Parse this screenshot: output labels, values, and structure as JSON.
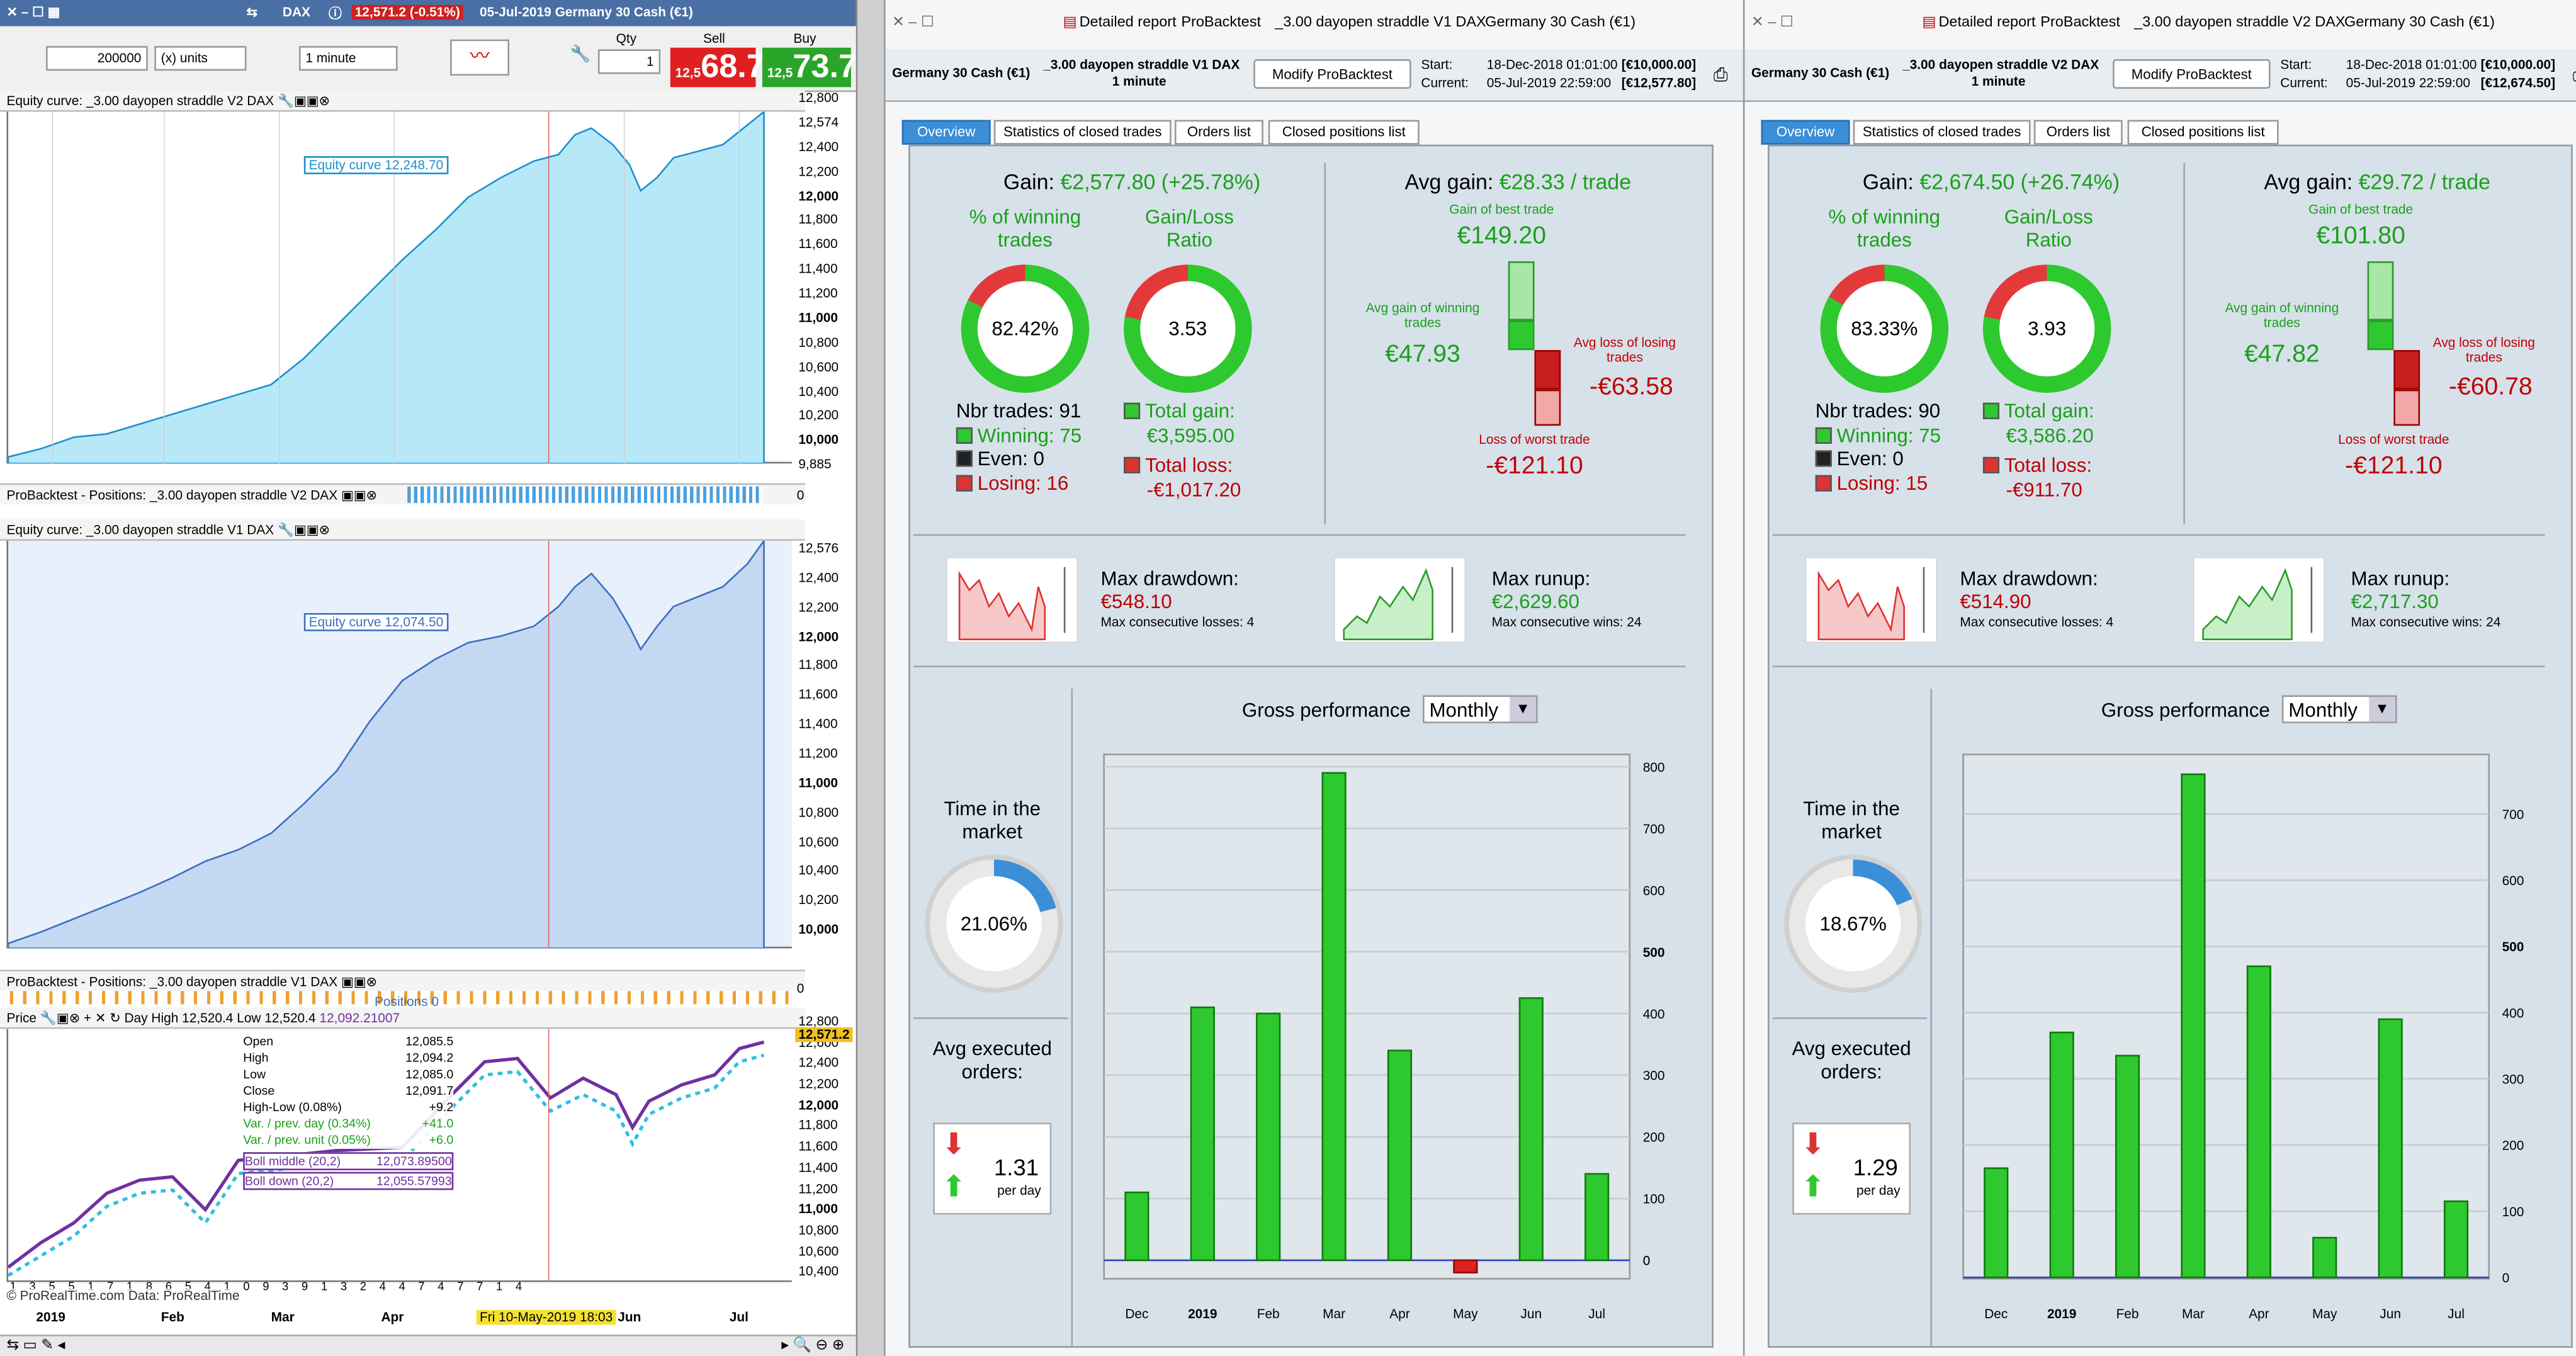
{
  "left": {
    "header": {
      "symbol": "DAX",
      "price": "12,571.2 (-0.51%)",
      "info": "05-Jul-2019 Germany 30 Cash (€1)"
    },
    "toolbar": {
      "units": "200000",
      "units_type": "(x) units",
      "timeframe": "1 minute",
      "qty_label": "Qty",
      "qty": "1",
      "sell_label": "Sell",
      "buy_label": "Buy",
      "sell_small": "12,5",
      "sell_big": "68.7",
      "buy_small": "12,5",
      "buy_big": "73.7"
    },
    "pane1": {
      "title": "Equity curve: _3.00 dayopen straddle V2 DAX",
      "label": "Equity curve  12,248.70",
      "axis": [
        "12,800",
        "12,574",
        "12,400",
        "12,200",
        "12,000",
        "11,800",
        "11,600",
        "11,400",
        "11,200",
        "11,000",
        "10,800",
        "10,600",
        "10,400",
        "10,200",
        "10,000",
        "9,885"
      ]
    },
    "pos1": {
      "title": "ProBacktest - Positions: _3.00 dayopen straddle V2 DAX",
      "axis": "0"
    },
    "pane2": {
      "title": "Equity curve: _3.00 dayopen straddle V1 DAX",
      "label": "Equity curve  12,074.50",
      "axis": [
        "12,576",
        "12,400",
        "12,200",
        "12,000",
        "11,800",
        "11,600",
        "11,400",
        "11,200",
        "11,000",
        "10,800",
        "10,600",
        "10,400",
        "10,200",
        "10,000"
      ]
    },
    "pos2": {
      "title": "ProBacktest - Positions: _3.00 dayopen straddle V1 DAX",
      "axis": "0",
      "label": "Positions  0"
    },
    "pane3": {
      "title": "Price",
      "dayhigh": "Day High 12,520.4 Low 12,520.4",
      "dayval": "12,092.21007",
      "tip": [
        [
          "Open",
          "12,085.5"
        ],
        [
          "High",
          "12,094.2"
        ],
        [
          "Low",
          "12,085.0"
        ],
        [
          "Close",
          "12,091.7"
        ],
        [
          "High-Low (0.08%)",
          "+9.2"
        ],
        [
          "Var. / prev. day (0.34%)",
          "+41.0"
        ],
        [
          "Var. / prev. unit (0.05%)",
          "+6.0"
        ]
      ],
      "boll_mid": "Boll middle (20,2)",
      "boll_mid_val": "12,073.89500",
      "boll_down": "Boll down (20,2)",
      "boll_down_val": "12,055.57993",
      "price": "12,571.2",
      "axis": [
        "12,800",
        "12,600",
        "12,400",
        "12,200",
        "12,000",
        "11,800",
        "11,600",
        "11,400",
        "11,200",
        "11,000",
        "10,800",
        "10,600",
        "10,400"
      ]
    },
    "xaxis": [
      "2019",
      "Feb",
      "Mar",
      "Apr",
      "May",
      "Jun",
      "Jul"
    ],
    "crosshair": "Fri 10-May-2019 18:03",
    "credit": "© ProRealTime.com Data: ProRealTime",
    "topnums1": "1 7 7 7 6 5 3 7 6 6 8 3 2 1 3 5 0 9 9 1 5 7",
    "botnums": "1 3 5 5 1 7 1 8 6 5 4 1 0 9 3 9 1 3 2 4 4 7 4 7 7 1 4"
  },
  "windows": [
    {
      "title_tabs": [
        "Detailed report",
        "ProBacktest",
        "_3.00 dayopen straddle V1 DAX",
        "Germany 30 Cash (€1)"
      ],
      "instrument": "Germany 30 Cash (€1)",
      "strategy": "_3.00 dayopen straddle V1 DAX",
      "tf": "1 minute",
      "modify": "Modify ProBacktest",
      "start_label": "Start:",
      "start": "18-Dec-2018 01:01:00",
      "start_val": "[€10,000.00]",
      "current_label": "Current:",
      "current": "05-Jul-2019 22:59:00",
      "current_val": "[€12,577.80]",
      "tabs": [
        "Overview",
        "Statistics of closed trades",
        "Orders list",
        "Closed positions list"
      ],
      "gain_label": "Gain:",
      "gain": "€2,577.80 (+25.78%)",
      "pct_win_label": "% of winning trades",
      "pct_win": "82.42%",
      "glr_label": "Gain/Loss Ratio",
      "glr": "3.53",
      "avg_gain_label": "Avg gain:",
      "avg_gain": "€28.33 / trade",
      "best_label": "Gain of best trade",
      "best": "€149.20",
      "avgwin_label": "Avg gain of winning trades",
      "avgwin": "€47.93",
      "avgloss_label": "Avg loss of losing trades",
      "avgloss": "-€63.58",
      "worst_label": "Loss of worst trade",
      "worst": "-€121.10",
      "nbr": "Nbr trades: 91",
      "winning": "Winning: 75",
      "even": "Even: 0",
      "losing": "Losing: 16",
      "total_gain_label": "Total gain:",
      "total_gain": "€3,595.00",
      "total_loss_label": "Total loss:",
      "total_loss": "-€1,017.20",
      "dd_label": "Max drawdown:",
      "dd": "€548.10",
      "dd_sub": "Max consecutive losses: 4",
      "ru_label": "Max runup:",
      "ru": "€2,629.60",
      "ru_sub": "Max consecutive wins: 24",
      "gp_label": "Gross performance",
      "gp_select": "Monthly",
      "time_label": "Time in the market",
      "time": "21.06%",
      "time_frac": 0.2106,
      "avg_exec_label": "Avg executed orders:",
      "avg_exec": "1.31",
      "per_day": "per day"
    },
    {
      "title_tabs": [
        "Detailed report",
        "ProBacktest",
        "_3.00 dayopen straddle V2 DAX",
        "Germany 30 Cash (€1)"
      ],
      "instrument": "Germany 30 Cash (€1)",
      "strategy": "_3.00 dayopen straddle V2 DAX",
      "tf": "1 minute",
      "modify": "Modify ProBacktest",
      "start_label": "Start:",
      "start": "18-Dec-2018 01:01:00",
      "start_val": "[€10,000.00]",
      "current_label": "Current:",
      "current": "05-Jul-2019 22:59:00",
      "current_val": "[€12,674.50]",
      "tabs": [
        "Overview",
        "Statistics of closed trades",
        "Orders list",
        "Closed positions list"
      ],
      "gain_label": "Gain:",
      "gain": "€2,674.50 (+26.74%)",
      "pct_win_label": "% of winning trades",
      "pct_win": "83.33%",
      "glr_label": "Gain/Loss Ratio",
      "glr": "3.93",
      "avg_gain_label": "Avg gain:",
      "avg_gain": "€29.72 / trade",
      "best_label": "Gain of best trade",
      "best": "€101.80",
      "avgwin_label": "Avg gain of winning trades",
      "avgwin": "€47.82",
      "avgloss_label": "Avg loss of losing trades",
      "avgloss": "-€60.78",
      "worst_label": "Loss of worst trade",
      "worst": "-€121.10",
      "nbr": "Nbr trades: 90",
      "winning": "Winning: 75",
      "even": "Even: 0",
      "losing": "Losing: 15",
      "total_gain_label": "Total gain:",
      "total_gain": "€3,586.20",
      "total_loss_label": "Total loss:",
      "total_loss": "-€911.70",
      "dd_label": "Max drawdown:",
      "dd": "€514.90",
      "dd_sub": "Max consecutive losses: 4",
      "ru_label": "Max runup:",
      "ru": "€2,717.30",
      "ru_sub": "Max consecutive wins: 24",
      "gp_label": "Gross performance",
      "gp_select": "Monthly",
      "time_label": "Time in the market",
      "time": "18.67%",
      "time_frac": 0.1867,
      "avg_exec_label": "Avg executed orders:",
      "avg_exec": "1.29",
      "per_day": "per day"
    }
  ],
  "chart_data": [
    {
      "type": "bar",
      "title": "Gross performance",
      "categories": [
        "Dec",
        "2019",
        "Feb",
        "Mar",
        "Apr",
        "May",
        "Jun",
        "Jul"
      ],
      "values": [
        110,
        410,
        400,
        790,
        340,
        -20,
        425,
        140
      ],
      "ylim": [
        -30,
        820
      ],
      "yticks": [
        0,
        100,
        200,
        300,
        400,
        500,
        600,
        700,
        800
      ]
    },
    {
      "type": "bar",
      "title": "Gross performance",
      "categories": [
        "Dec",
        "2019",
        "Feb",
        "Mar",
        "Apr",
        "May",
        "Jun",
        "Jul"
      ],
      "values": [
        165,
        370,
        335,
        760,
        470,
        60,
        390,
        115
      ],
      "ylim": [
        -2,
        790
      ],
      "yticks": [
        100,
        200,
        300,
        400,
        500,
        600,
        700
      ]
    }
  ],
  "colors": {
    "green": "#1aa01a",
    "red": "#c00000",
    "accent": "#3b8ed8",
    "titlebar": "#4a6fa5"
  }
}
